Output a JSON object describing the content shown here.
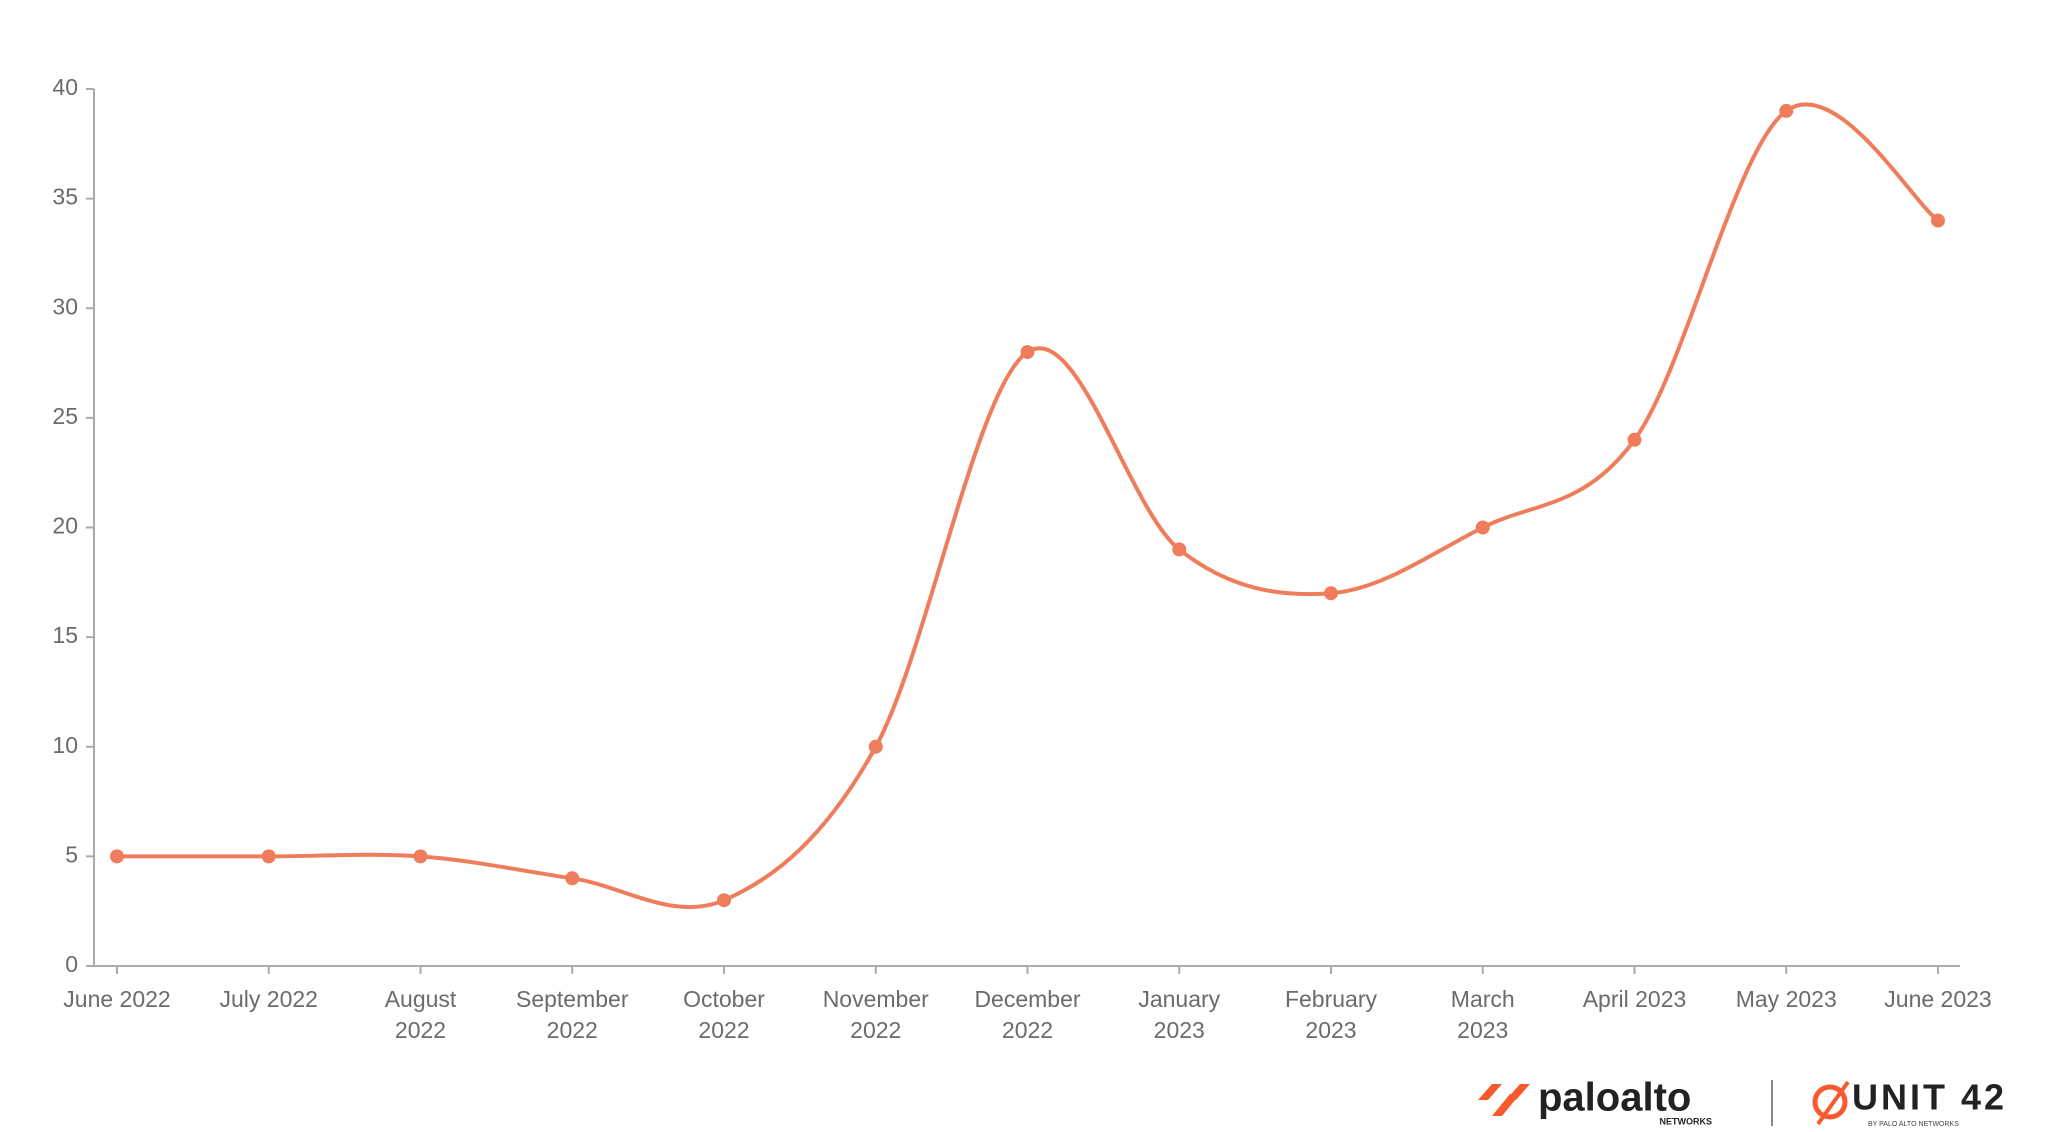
{
  "chart_data": {
    "type": "line",
    "categories": [
      [
        "June 2022"
      ],
      [
        "July 2022"
      ],
      [
        "August",
        "2022"
      ],
      [
        "September",
        "2022"
      ],
      [
        "October",
        "2022"
      ],
      [
        "November",
        "2022"
      ],
      [
        "December",
        "2022"
      ],
      [
        "January",
        "2023"
      ],
      [
        "February",
        "2023"
      ],
      [
        "March",
        "2023"
      ],
      [
        "April 2023"
      ],
      [
        "May 2023"
      ],
      [
        "June 2023"
      ]
    ],
    "values": [
      5,
      5,
      5,
      4,
      3,
      10,
      28,
      19,
      17,
      20,
      24,
      39,
      34
    ],
    "color": "#ef7d5c",
    "ylim": [
      0,
      40
    ],
    "yticks": [
      0,
      5,
      10,
      15,
      20,
      25,
      30,
      35,
      40
    ],
    "grid": false,
    "smooth": true
  },
  "branding": {
    "paloalto": "paloalto",
    "paloalto_sub": "NETWORKS",
    "unit42": "UNIT 42",
    "unit42_sub": "BY PALO ALTO NETWORKS"
  }
}
